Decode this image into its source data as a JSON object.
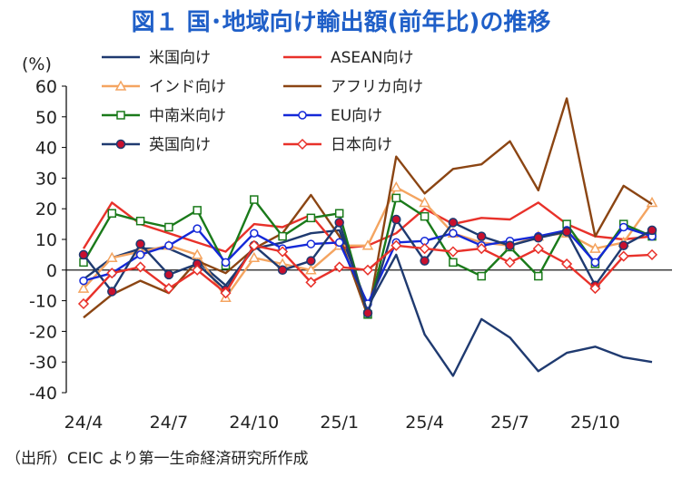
{
  "title": "図１ 国･地域向け輸出額(前年比)の推移",
  "unit_label": "(%)",
  "source_note": "（出所）CEIC より第一生命経済研究所作成",
  "chart_data": {
    "type": "line",
    "title": "図１ 国･地域向け輸出額(前年比)の推移",
    "ylabel": "(%)",
    "xlabel": "",
    "ylim": [
      -40,
      60
    ],
    "yticks": [
      60,
      50,
      40,
      30,
      20,
      10,
      0,
      -10,
      -20,
      -30,
      -40
    ],
    "grid": false,
    "x": [
      "24/4",
      "24/5",
      "24/6",
      "24/7",
      "24/8",
      "24/9",
      "24/10",
      "24/11",
      "24/12",
      "25/1",
      "25/2",
      "25/3",
      "25/4",
      "25/5",
      "25/6",
      "25/7",
      "25/8",
      "25/9",
      "25/10",
      "25/11",
      "25/12"
    ],
    "xtick_labels": [
      "24/4",
      "24/7",
      "24/10",
      "25/1",
      "25/4",
      "25/7",
      "25/10"
    ],
    "legend_position": "top",
    "series": [
      {
        "name": "米国向け",
        "color": "#1f3a70",
        "marker": "none",
        "values": [
          -3,
          4,
          7,
          7,
          3,
          -5,
          7,
          9,
          12,
          13,
          -12,
          5,
          -21,
          -34.5,
          -16,
          -22,
          -33,
          -27,
          -25,
          -28.5,
          -30
        ]
      },
      {
        "name": "ASEAN向け",
        "color": "#e8312a",
        "marker": "none",
        "values": [
          7,
          22,
          15,
          12,
          9,
          6,
          15,
          14,
          18,
          7,
          8,
          12,
          20,
          15,
          17,
          16.5,
          22,
          15,
          11,
          10,
          11
        ]
      },
      {
        "name": "インド向け",
        "color": "#f4a460",
        "marker": "triangle",
        "values": [
          -6,
          4,
          6,
          8,
          5,
          -9,
          4,
          2,
          0,
          8,
          8,
          27,
          22,
          12,
          9,
          8,
          11,
          12,
          7,
          9,
          22
        ]
      },
      {
        "name": "アフリカ向け",
        "color": "#8b4513",
        "marker": "none",
        "values": [
          -15.5,
          -8,
          -3.5,
          -7.5,
          3,
          -1,
          7,
          12,
          24.5,
          11,
          -15,
          37,
          25,
          33,
          34.5,
          42,
          26,
          56,
          11,
          27.5,
          21.5
        ]
      },
      {
        "name": "中南米向け",
        "color": "#1a7a1a",
        "marker": "square",
        "values": [
          2.5,
          18.5,
          16,
          14,
          19.5,
          1.5,
          23,
          11,
          17,
          18.5,
          -14.5,
          23.5,
          17.5,
          2.5,
          -2,
          7.5,
          -2,
          15,
          2,
          15,
          11
        ]
      },
      {
        "name": "EU向け",
        "color": "#1428d8",
        "marker": "circle",
        "values": [
          -3.5,
          -1,
          5,
          8,
          13.5,
          2.5,
          12,
          7,
          8.5,
          9,
          -11,
          9,
          9.5,
          12,
          8,
          9.5,
          11,
          13,
          2.5,
          14,
          11
        ]
      },
      {
        "name": "英国向け",
        "color": "#1f3a70",
        "marker": "dot",
        "values": [
          5,
          -7,
          8.5,
          -1.5,
          2,
          -6.5,
          8,
          0,
          3,
          15.5,
          -14,
          16.5,
          3,
          15.5,
          11,
          8,
          10.5,
          12.5,
          -5,
          8,
          13
        ]
      },
      {
        "name": "日本向け",
        "color": "#e8312a",
        "marker": "diamond",
        "values": [
          -11,
          -1,
          1,
          -6,
          0,
          -7.5,
          8,
          6,
          -4,
          1,
          0,
          8,
          7,
          6,
          7,
          2.5,
          7,
          2,
          -6,
          4.5,
          5
        ]
      }
    ]
  }
}
